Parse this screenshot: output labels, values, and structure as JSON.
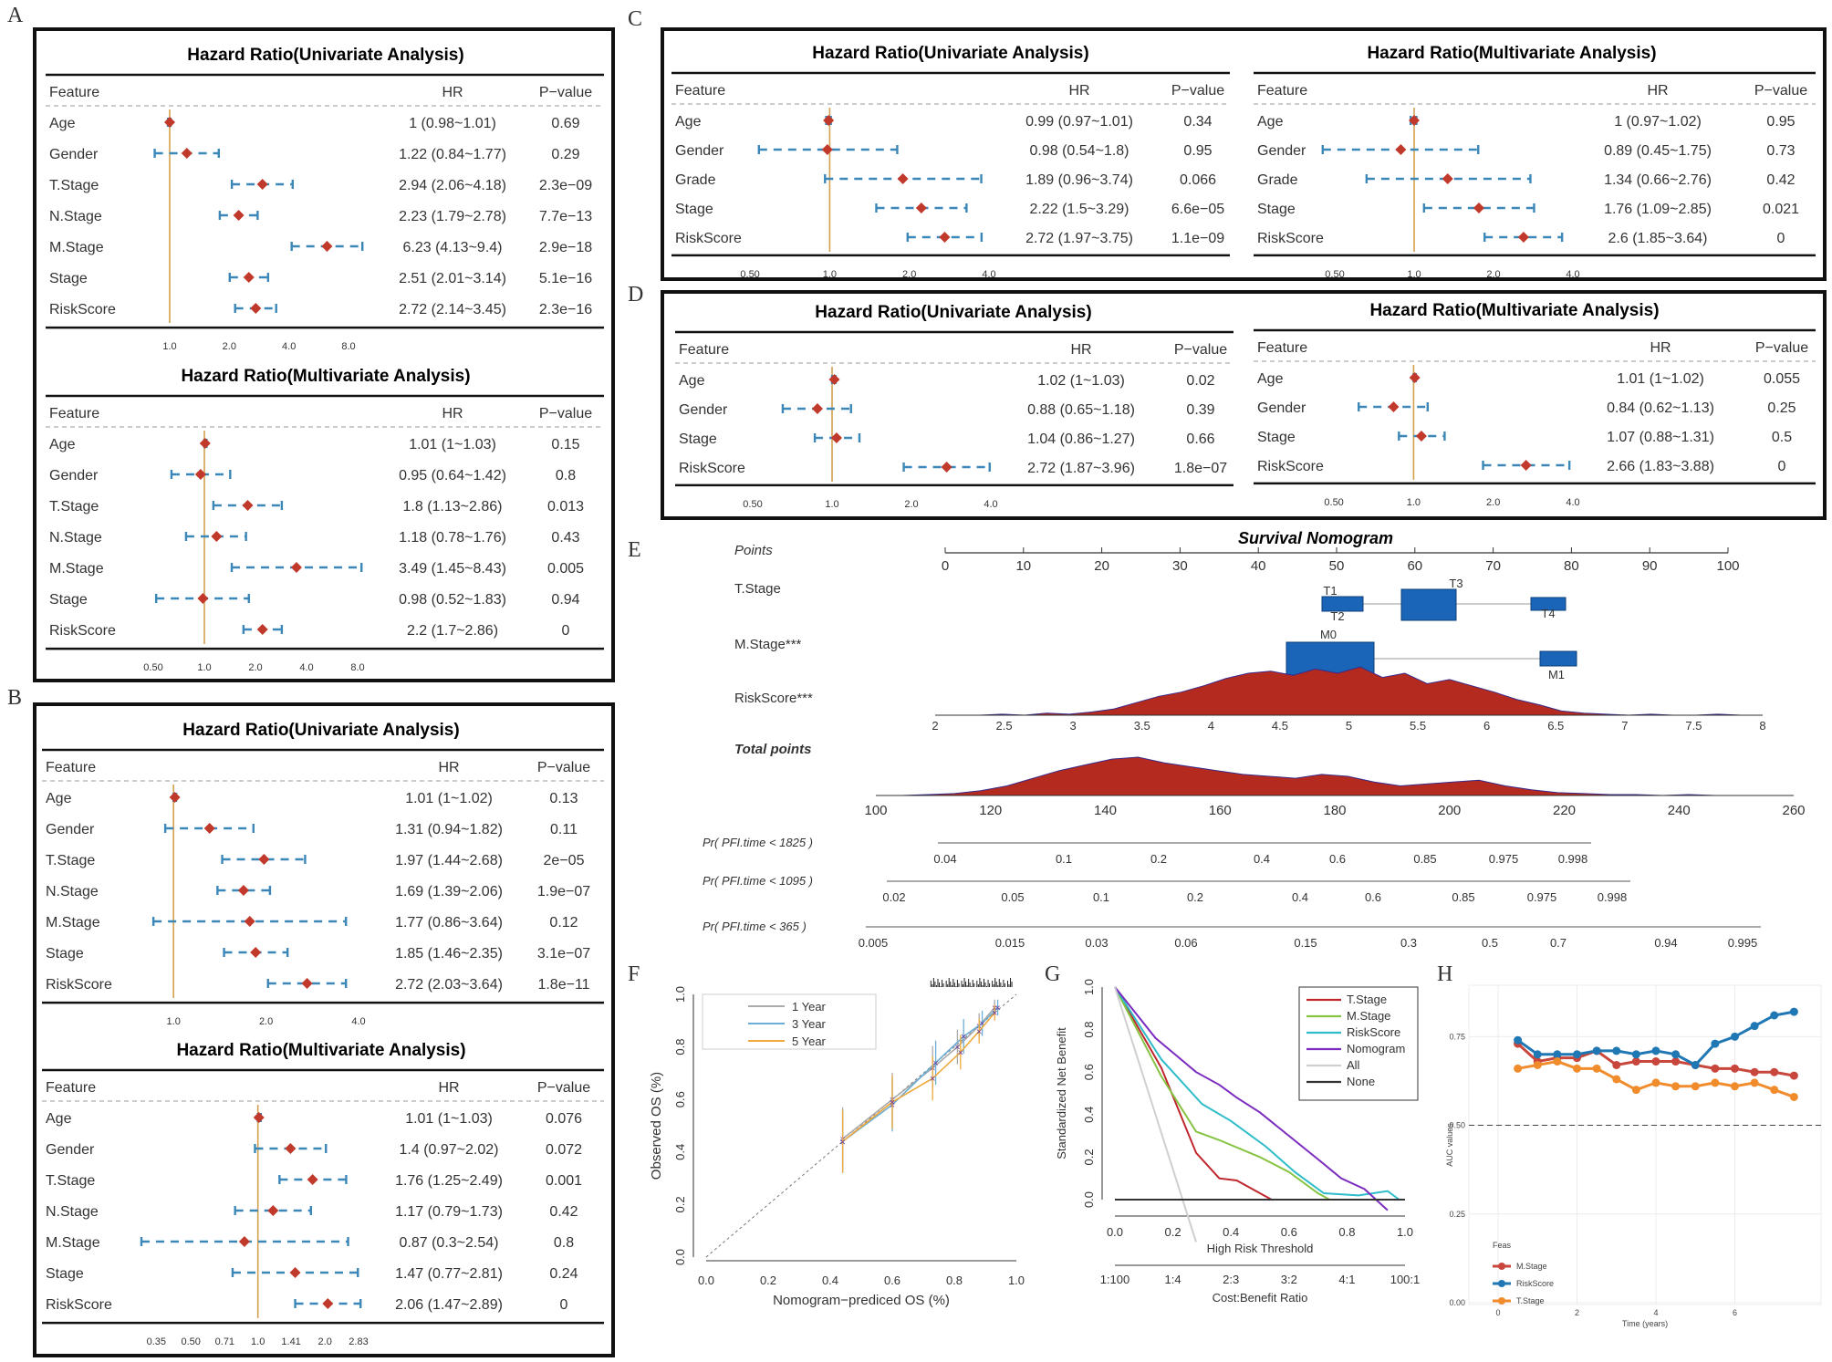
{
  "panel_letters": {
    "A": "A",
    "B": "B",
    "C": "C",
    "D": "D",
    "E": "E",
    "F": "F",
    "G": "G",
    "H": "H"
  },
  "forest_headers": {
    "feature": "Feature",
    "hr": "HR",
    "pvalue": "P−value"
  },
  "colors": {
    "point": "#c0392b",
    "ci": "#3a87b8",
    "refline": "#d4a050",
    "nomo_box": "#1a65b8",
    "density": "#b52a1e"
  },
  "chart_data": [
    {
      "id": "A_uni",
      "type": "forest",
      "title": "Hazard Ratio(Univariate Analysis)",
      "axis": {
        "scale": "log2",
        "min": 1,
        "max": 8,
        "ticks": [
          "1.0",
          "2.0",
          "4.0",
          "8.0"
        ]
      },
      "rows": [
        {
          "feature": "Age",
          "hr": 1.0,
          "lo": 0.98,
          "hi": 1.01,
          "hr_text": "1 (0.98~1.01)",
          "p": "0.69"
        },
        {
          "feature": "Gender",
          "hr": 1.22,
          "lo": 0.84,
          "hi": 1.77,
          "hr_text": "1.22 (0.84~1.77)",
          "p": "0.29"
        },
        {
          "feature": "T.Stage",
          "hr": 2.94,
          "lo": 2.06,
          "hi": 4.18,
          "hr_text": "2.94 (2.06~4.18)",
          "p": "2.3e−09"
        },
        {
          "feature": "N.Stage",
          "hr": 2.23,
          "lo": 1.79,
          "hi": 2.78,
          "hr_text": "2.23 (1.79~2.78)",
          "p": "7.7e−13"
        },
        {
          "feature": "M.Stage",
          "hr": 6.23,
          "lo": 4.13,
          "hi": 9.4,
          "hr_text": "6.23 (4.13~9.4)",
          "p": "2.9e−18"
        },
        {
          "feature": "Stage",
          "hr": 2.51,
          "lo": 2.01,
          "hi": 3.14,
          "hr_text": "2.51 (2.01~3.14)",
          "p": "5.1e−16"
        },
        {
          "feature": "RiskScore",
          "hr": 2.72,
          "lo": 2.14,
          "hi": 3.45,
          "hr_text": "2.72 (2.14~3.45)",
          "p": "2.3e−16"
        }
      ]
    },
    {
      "id": "A_multi",
      "type": "forest",
      "title": "Hazard Ratio(Multivariate Analysis)",
      "axis": {
        "scale": "log2",
        "min": 0.5,
        "max": 8,
        "ticks": [
          "0.50",
          "1.0",
          "2.0",
          "4.0",
          "8.0"
        ]
      },
      "rows": [
        {
          "feature": "Age",
          "hr": 1.01,
          "lo": 1.0,
          "hi": 1.03,
          "hr_text": "1.01 (1~1.03)",
          "p": "0.15"
        },
        {
          "feature": "Gender",
          "hr": 0.95,
          "lo": 0.64,
          "hi": 1.42,
          "hr_text": "0.95 (0.64~1.42)",
          "p": "0.8"
        },
        {
          "feature": "T.Stage",
          "hr": 1.8,
          "lo": 1.13,
          "hi": 2.86,
          "hr_text": "1.8 (1.13~2.86)",
          "p": "0.013"
        },
        {
          "feature": "N.Stage",
          "hr": 1.18,
          "lo": 0.78,
          "hi": 1.76,
          "hr_text": "1.18 (0.78~1.76)",
          "p": "0.43"
        },
        {
          "feature": "M.Stage",
          "hr": 3.49,
          "lo": 1.45,
          "hi": 8.43,
          "hr_text": "3.49 (1.45~8.43)",
          "p": "0.005"
        },
        {
          "feature": "Stage",
          "hr": 0.98,
          "lo": 0.52,
          "hi": 1.83,
          "hr_text": "0.98 (0.52~1.83)",
          "p": "0.94"
        },
        {
          "feature": "RiskScore",
          "hr": 2.2,
          "lo": 1.7,
          "hi": 2.86,
          "hr_text": "2.2 (1.7~2.86)",
          "p": "0"
        }
      ]
    },
    {
      "id": "B_uni",
      "type": "forest",
      "title": "Hazard Ratio(Univariate Analysis)",
      "axis": {
        "scale": "log2",
        "min": 0.7,
        "max": 4,
        "ticks": [
          "1.0",
          "2.0",
          "4.0"
        ]
      },
      "rows": [
        {
          "feature": "Age",
          "hr": 1.01,
          "lo": 1.0,
          "hi": 1.02,
          "hr_text": "1.01 (1~1.02)",
          "p": "0.13"
        },
        {
          "feature": "Gender",
          "hr": 1.31,
          "lo": 0.94,
          "hi": 1.82,
          "hr_text": "1.31 (0.94~1.82)",
          "p": "0.11"
        },
        {
          "feature": "T.Stage",
          "hr": 1.97,
          "lo": 1.44,
          "hi": 2.68,
          "hr_text": "1.97 (1.44~2.68)",
          "p": "2e−05"
        },
        {
          "feature": "N.Stage",
          "hr": 1.69,
          "lo": 1.39,
          "hi": 2.06,
          "hr_text": "1.69 (1.39~2.06)",
          "p": "1.9e−07"
        },
        {
          "feature": "M.Stage",
          "hr": 1.77,
          "lo": 0.86,
          "hi": 3.64,
          "hr_text": "1.77 (0.86~3.64)",
          "p": "0.12"
        },
        {
          "feature": "Stage",
          "hr": 1.85,
          "lo": 1.46,
          "hi": 2.35,
          "hr_text": "1.85 (1.46~2.35)",
          "p": "3.1e−07"
        },
        {
          "feature": "RiskScore",
          "hr": 2.72,
          "lo": 2.03,
          "hi": 3.64,
          "hr_text": "2.72 (2.03~3.64)",
          "p": "1.8e−11"
        }
      ]
    },
    {
      "id": "B_multi",
      "type": "forest",
      "title": "Hazard Ratio(Multivariate Analysis)",
      "axis": {
        "scale": "log2",
        "min": 0.3,
        "max": 2.83,
        "ticks": [
          "0.35",
          "0.50",
          "0.71",
          "1.0",
          "1.41",
          "2.0",
          "2.83"
        ]
      },
      "rows": [
        {
          "feature": "Age",
          "hr": 1.01,
          "lo": 1.0,
          "hi": 1.03,
          "hr_text": "1.01 (1~1.03)",
          "p": "0.076"
        },
        {
          "feature": "Gender",
          "hr": 1.4,
          "lo": 0.97,
          "hi": 2.02,
          "hr_text": "1.4 (0.97~2.02)",
          "p": "0.072"
        },
        {
          "feature": "T.Stage",
          "hr": 1.76,
          "lo": 1.25,
          "hi": 2.49,
          "hr_text": "1.76 (1.25~2.49)",
          "p": "0.001"
        },
        {
          "feature": "N.Stage",
          "hr": 1.17,
          "lo": 0.79,
          "hi": 1.73,
          "hr_text": "1.17 (0.79~1.73)",
          "p": "0.42"
        },
        {
          "feature": "M.Stage",
          "hr": 0.87,
          "lo": 0.3,
          "hi": 2.54,
          "hr_text": "0.87 (0.3~2.54)",
          "p": "0.8"
        },
        {
          "feature": "Stage",
          "hr": 1.47,
          "lo": 0.77,
          "hi": 2.81,
          "hr_text": "1.47 (0.77~2.81)",
          "p": "0.24"
        },
        {
          "feature": "RiskScore",
          "hr": 2.06,
          "lo": 1.47,
          "hi": 2.89,
          "hr_text": "2.06 (1.47~2.89)",
          "p": "0"
        }
      ]
    },
    {
      "id": "C_uni",
      "type": "forest",
      "title": "Hazard Ratio(Univariate Analysis)",
      "axis": {
        "scale": "log2",
        "min": 0.4,
        "max": 4,
        "ticks": [
          "0.50",
          "1.0",
          "2.0",
          "4.0"
        ]
      },
      "rows": [
        {
          "feature": "Age",
          "hr": 0.99,
          "lo": 0.97,
          "hi": 1.01,
          "hr_text": "0.99 (0.97~1.01)",
          "p": "0.34"
        },
        {
          "feature": "Gender",
          "hr": 0.98,
          "lo": 0.54,
          "hi": 1.8,
          "hr_text": "0.98 (0.54~1.8)",
          "p": "0.95"
        },
        {
          "feature": "Grade",
          "hr": 1.89,
          "lo": 0.96,
          "hi": 3.74,
          "hr_text": "1.89 (0.96~3.74)",
          "p": "0.066"
        },
        {
          "feature": "Stage",
          "hr": 2.22,
          "lo": 1.5,
          "hi": 3.29,
          "hr_text": "2.22 (1.5~3.29)",
          "p": "6.6e−05"
        },
        {
          "feature": "RiskScore",
          "hr": 2.72,
          "lo": 1.97,
          "hi": 3.75,
          "hr_text": "2.72 (1.97~3.75)",
          "p": "1.1e−09"
        }
      ]
    },
    {
      "id": "C_multi",
      "type": "forest",
      "title": "Hazard Ratio(Multivariate Analysis)",
      "axis": {
        "scale": "log2",
        "min": 0.4,
        "max": 4,
        "ticks": [
          "0.50",
          "1.0",
          "2.0",
          "4.0"
        ]
      },
      "rows": [
        {
          "feature": "Age",
          "hr": 1.0,
          "lo": 0.97,
          "hi": 1.02,
          "hr_text": "1 (0.97~1.02)",
          "p": "0.95"
        },
        {
          "feature": "Gender",
          "hr": 0.89,
          "lo": 0.45,
          "hi": 1.75,
          "hr_text": "0.89 (0.45~1.75)",
          "p": "0.73"
        },
        {
          "feature": "Grade",
          "hr": 1.34,
          "lo": 0.66,
          "hi": 2.76,
          "hr_text": "1.34 (0.66~2.76)",
          "p": "0.42"
        },
        {
          "feature": "Stage",
          "hr": 1.76,
          "lo": 1.09,
          "hi": 2.85,
          "hr_text": "1.76 (1.09~2.85)",
          "p": "0.021"
        },
        {
          "feature": "RiskScore",
          "hr": 2.6,
          "lo": 1.85,
          "hi": 3.64,
          "hr_text": "2.6 (1.85~3.64)",
          "p": "0"
        }
      ]
    },
    {
      "id": "D_uni",
      "type": "forest",
      "title": "Hazard Ratio(Univariate Analysis)",
      "axis": {
        "scale": "log2",
        "min": 0.4,
        "max": 4,
        "ticks": [
          "0.50",
          "1.0",
          "2.0",
          "4.0"
        ]
      },
      "rows": [
        {
          "feature": "Age",
          "hr": 1.02,
          "lo": 1.0,
          "hi": 1.03,
          "hr_text": "1.02 (1~1.03)",
          "p": "0.02"
        },
        {
          "feature": "Gender",
          "hr": 0.88,
          "lo": 0.65,
          "hi": 1.18,
          "hr_text": "0.88 (0.65~1.18)",
          "p": "0.39"
        },
        {
          "feature": "Stage",
          "hr": 1.04,
          "lo": 0.86,
          "hi": 1.27,
          "hr_text": "1.04 (0.86~1.27)",
          "p": "0.66"
        },
        {
          "feature": "RiskScore",
          "hr": 2.72,
          "lo": 1.87,
          "hi": 3.96,
          "hr_text": "2.72 (1.87~3.96)",
          "p": "1.8e−07"
        }
      ]
    },
    {
      "id": "D_multi",
      "type": "forest",
      "title": "Hazard Ratio(Multivariate Analysis)",
      "axis": {
        "scale": "log2",
        "min": 0.4,
        "max": 4,
        "ticks": [
          "0.50",
          "1.0",
          "2.0",
          "4.0"
        ]
      },
      "rows": [
        {
          "feature": "Age",
          "hr": 1.01,
          "lo": 1.0,
          "hi": 1.02,
          "hr_text": "1.01 (1~1.02)",
          "p": "0.055"
        },
        {
          "feature": "Gender",
          "hr": 0.84,
          "lo": 0.62,
          "hi": 1.13,
          "hr_text": "0.84 (0.62~1.13)",
          "p": "0.25"
        },
        {
          "feature": "Stage",
          "hr": 1.07,
          "lo": 0.88,
          "hi": 1.31,
          "hr_text": "1.07 (0.88~1.31)",
          "p": "0.5"
        },
        {
          "feature": "RiskScore",
          "hr": 2.66,
          "lo": 1.83,
          "hi": 3.88,
          "hr_text": "2.66 (1.83~3.88)",
          "p": "0"
        }
      ]
    },
    {
      "id": "E",
      "type": "nomogram",
      "title": "Survival Nomogram",
      "points_label": "Points",
      "points_ticks": [
        0,
        10,
        20,
        30,
        40,
        50,
        60,
        70,
        80,
        90,
        100
      ],
      "tstage_label": "T.Stage",
      "tstage_categories": [
        "T1",
        "T2",
        "T3",
        "T4"
      ],
      "mstage_label": "M.Stage***",
      "mstage_categories": [
        "M0",
        "M1"
      ],
      "riskscore_label": "RiskScore***",
      "riskscore_ticks": [
        "2",
        "2.5",
        "3",
        "3.5",
        "4",
        "4.5",
        "5",
        "5.5",
        "6",
        "6.5",
        "7",
        "7.5",
        "8"
      ],
      "total_label": "Total points",
      "total_ticks": [
        "100",
        "120",
        "140",
        "160",
        "180",
        "200",
        "220",
        "240",
        "260"
      ],
      "prob_rows": [
        {
          "label": "Pr( PFI.time < 1825 )",
          "ticks": [
            "0.04",
            "0.1",
            "0.2",
            "0.4",
            "0.6",
            "0.85",
            "0.975",
            "0.998"
          ]
        },
        {
          "label": "Pr( PFI.time < 1095 )",
          "ticks": [
            "0.02",
            "0.05",
            "0.1",
            "0.2",
            "0.4",
            "0.6",
            "0.85",
            "0.975",
            "0.998"
          ]
        },
        {
          "label": "Pr( PFI.time < 365 )",
          "ticks": [
            "0.005",
            "0.015",
            "0.03",
            "0.06",
            "0.15",
            "0.3",
            "0.5",
            "0.7",
            "0.94",
            "0.995"
          ]
        }
      ]
    },
    {
      "id": "F",
      "type": "line",
      "xlabel": "Nomogram−prediced OS (%)",
      "ylabel": "Observed OS (%)",
      "xlim": [
        0,
        1
      ],
      "ylim": [
        0,
        1
      ],
      "xticks": [
        "0.0",
        "0.2",
        "0.4",
        "0.6",
        "0.8",
        "1.0"
      ],
      "yticks": [
        "0.0",
        "0.2",
        "0.4",
        "0.6",
        "0.8",
        "1.0"
      ],
      "series": [
        {
          "name": "1 Year",
          "color": "#aaaaaa",
          "x": [
            0.44,
            0.6,
            0.73,
            0.81,
            0.88,
            0.93
          ],
          "y": [
            0.45,
            0.6,
            0.72,
            0.8,
            0.88,
            0.95
          ]
        },
        {
          "name": "3 Year",
          "color": "#6baed6",
          "x": [
            0.44,
            0.6,
            0.74,
            0.83,
            0.89,
            0.94
          ],
          "y": [
            0.44,
            0.58,
            0.74,
            0.84,
            0.89,
            0.95
          ]
        },
        {
          "name": "5 Year",
          "color": "#f0a93c",
          "x": [
            0.44,
            0.6,
            0.73,
            0.82,
            0.88,
            0.93
          ],
          "y": [
            0.44,
            0.59,
            0.68,
            0.78,
            0.86,
            0.93
          ]
        }
      ]
    },
    {
      "id": "G",
      "type": "line",
      "xlabel": "High Risk Threshold",
      "ylabel": "Standardized Net Benefit",
      "x2label": "Cost:Benefit Ratio",
      "xlim": [
        0,
        1
      ],
      "ylim": [
        0,
        1
      ],
      "xticks": [
        "0.0",
        "0.2",
        "0.4",
        "0.6",
        "0.8",
        "1.0"
      ],
      "yticks": [
        "0.0",
        "0.2",
        "0.4",
        "0.6",
        "0.8",
        "1.0"
      ],
      "x2ticks": [
        "1:100",
        "1:4",
        "2:3",
        "3:2",
        "4:1",
        "100:1"
      ],
      "series": [
        {
          "name": "T.Stage",
          "color": "#c0262e",
          "x": [
            0,
            0.16,
            0.28,
            0.36,
            0.42,
            0.5,
            0.54
          ],
          "y": [
            1,
            0.62,
            0.22,
            0.1,
            0.09,
            0.03,
            0
          ]
        },
        {
          "name": "M.Stage",
          "color": "#86c342",
          "x": [
            0,
            0.16,
            0.28,
            0.36,
            0.5,
            0.6,
            0.7,
            0.74
          ],
          "y": [
            1,
            0.58,
            0.32,
            0.28,
            0.2,
            0.13,
            0.03,
            0
          ]
        },
        {
          "name": "RiskScore",
          "color": "#2ebcc9",
          "x": [
            0,
            0.16,
            0.3,
            0.4,
            0.52,
            0.62,
            0.72,
            0.84,
            0.94,
            0.98
          ],
          "y": [
            1,
            0.66,
            0.45,
            0.37,
            0.25,
            0.13,
            0.03,
            0.02,
            0.04,
            0
          ]
        },
        {
          "name": "Nomogram",
          "color": "#7b2cbf",
          "x": [
            0,
            0.14,
            0.28,
            0.36,
            0.42,
            0.5,
            0.6,
            0.7,
            0.78,
            0.86,
            0.94
          ],
          "y": [
            1,
            0.76,
            0.6,
            0.54,
            0.48,
            0.41,
            0.3,
            0.19,
            0.1,
            0.05,
            -0.05
          ]
        },
        {
          "name": "All",
          "color": "#cfcfcf",
          "x": [
            0,
            0.28
          ],
          "y": [
            1,
            -0.2
          ]
        },
        {
          "name": "None",
          "color": "#333333",
          "x": [
            0,
            1
          ],
          "y": [
            0,
            0
          ]
        }
      ]
    },
    {
      "id": "H",
      "type": "line",
      "xlabel": "Time (years)",
      "ylabel": "AUC values",
      "legend_title": "Feas",
      "xlim": [
        0,
        10
      ],
      "ylim": [
        0,
        1
      ],
      "xticks": [
        "0",
        "2",
        "4",
        "6"
      ],
      "yticks": [
        "0.00",
        "0.25",
        "0.50",
        "0.75"
      ],
      "series": [
        {
          "name": "M.Stage",
          "color": "#c8463c",
          "x": [
            0.5,
            1,
            1.5,
            2,
            2.5,
            3,
            3.5,
            4,
            4.5,
            5,
            5.5,
            6,
            6.5,
            7,
            7.5
          ],
          "y": [
            0.73,
            0.68,
            0.69,
            0.69,
            0.71,
            0.67,
            0.68,
            0.68,
            0.68,
            0.67,
            0.66,
            0.66,
            0.65,
            0.65,
            0.64
          ]
        },
        {
          "name": "RiskScore",
          "color": "#1f77b4",
          "x": [
            0.5,
            1,
            1.5,
            2,
            2.5,
            3,
            3.5,
            4,
            4.5,
            5,
            5.5,
            6,
            6.5,
            7,
            7.5
          ],
          "y": [
            0.74,
            0.7,
            0.7,
            0.7,
            0.71,
            0.71,
            0.7,
            0.71,
            0.7,
            0.67,
            0.73,
            0.75,
            0.78,
            0.81,
            0.82
          ]
        },
        {
          "name": "T.Stage",
          "color": "#f08c2c",
          "x": [
            0.5,
            1,
            1.5,
            2,
            2.5,
            3,
            3.5,
            4,
            4.5,
            5,
            5.5,
            6,
            6.5,
            7,
            7.5
          ],
          "y": [
            0.66,
            0.67,
            0.68,
            0.66,
            0.66,
            0.63,
            0.6,
            0.62,
            0.61,
            0.61,
            0.62,
            0.61,
            0.62,
            0.6,
            0.58
          ]
        }
      ]
    }
  ]
}
